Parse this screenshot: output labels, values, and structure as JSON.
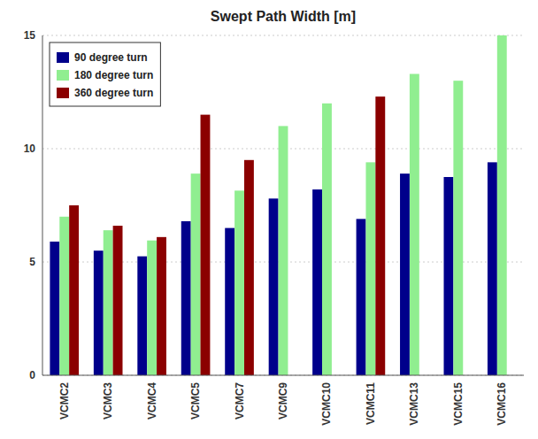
{
  "chart_data": {
    "type": "bar",
    "title": "Swept Path Width [m]",
    "categories": [
      "VCMC2",
      "VCMC3",
      "VCMC4",
      "VCMC5",
      "VCMC7",
      "VCMC9",
      "VCMC10",
      "VCMC11",
      "VCMC13",
      "VCMC15",
      "VCMC16"
    ],
    "series": [
      {
        "name": "90 degree turn",
        "color": "#00008B",
        "values": [
          5.9,
          5.5,
          5.25,
          6.8,
          6.5,
          7.8,
          8.2,
          6.9,
          8.9,
          8.75,
          9.4
        ]
      },
      {
        "name": "180 degree turn",
        "color": "#90EE90",
        "values": [
          7.0,
          6.4,
          5.95,
          8.9,
          8.15,
          11.0,
          12.0,
          9.4,
          13.3,
          13.0,
          15.0
        ]
      },
      {
        "name": "360 degree turn",
        "color": "#8B0000",
        "values": [
          7.5,
          6.6,
          6.1,
          11.5,
          9.5,
          0,
          0,
          12.3,
          0,
          0,
          0
        ]
      }
    ],
    "ylim": [
      0,
      15
    ],
    "yticks": [
      0,
      5,
      10,
      15
    ],
    "grid": true,
    "legend": "upper left"
  }
}
